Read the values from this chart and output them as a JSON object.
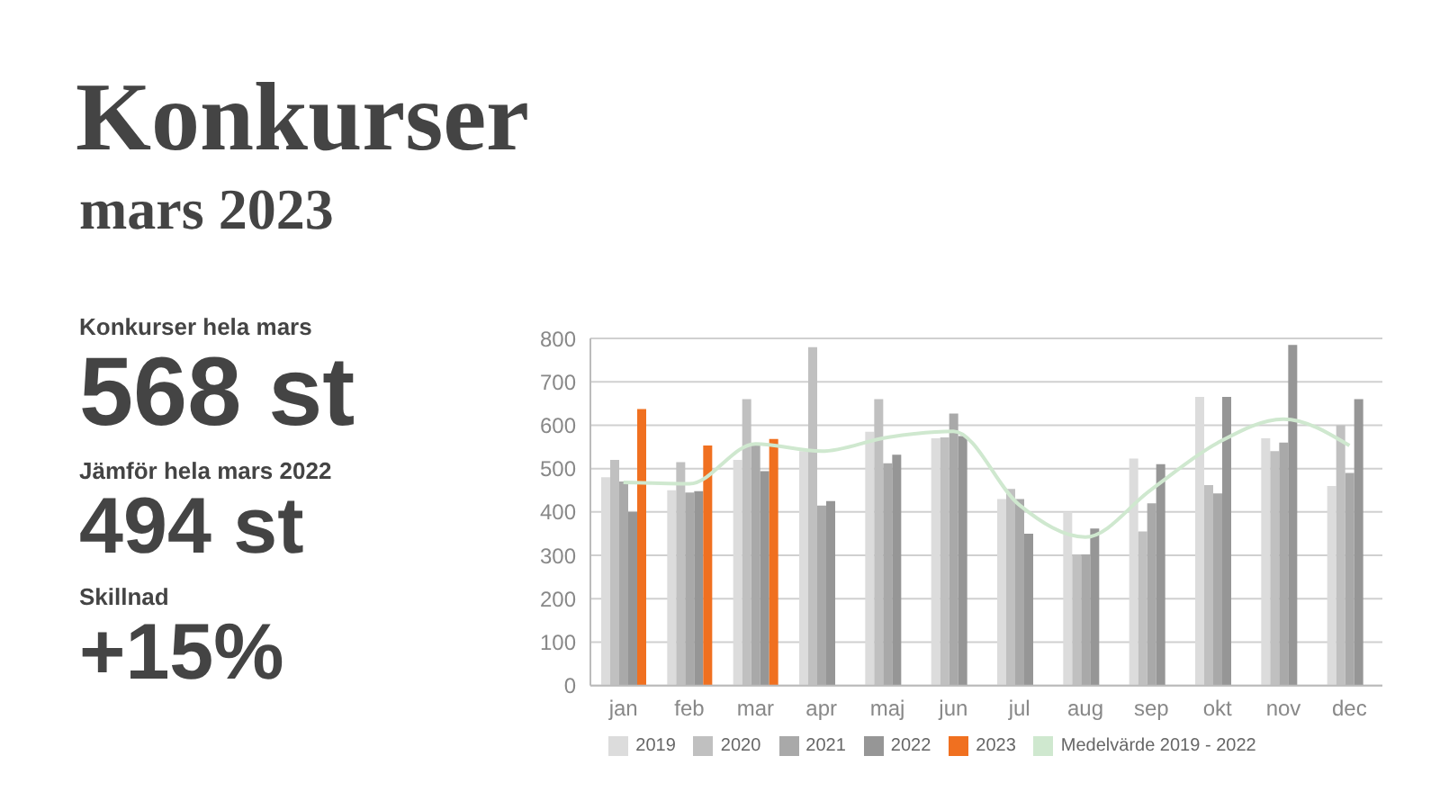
{
  "chart_data": {
    "type": "bar",
    "title": "Konkurser",
    "subtitle": "mars 2023",
    "annotations": [
      "Konkurser hela mars",
      "568 st",
      "Jämför hela mars 2022",
      "494 st",
      "Skillnad",
      "+15%"
    ],
    "categories": [
      "jan",
      "feb",
      "mar",
      "apr",
      "maj",
      "jun",
      "jul",
      "aug",
      "sep",
      "okt",
      "nov",
      "dec"
    ],
    "series": [
      {
        "name": "Medelvärde 2019 - 2022",
        "type": "line",
        "color": "#cfe8cf",
        "values": [
          468,
          465,
          557,
          540,
          572,
          586,
          416,
          342,
          452,
          559,
          614,
          553
        ]
      },
      {
        "name": "2019",
        "color": "#dcdcdc",
        "values": [
          480,
          450,
          520,
          540,
          585,
          570,
          430,
          400,
          523,
          665,
          570,
          460
        ]
      },
      {
        "name": "2020",
        "color": "#c0c0c0",
        "values": [
          520,
          515,
          660,
          780,
          660,
          572,
          453,
          302,
          355,
          462,
          540,
          600
        ]
      },
      {
        "name": "2021",
        "color": "#a9a9a9",
        "values": [
          470,
          445,
          555,
          415,
          512,
          627,
          430,
          302,
          420,
          443,
          560,
          490
        ]
      },
      {
        "name": "2022",
        "color": "#969696",
        "values": [
          400,
          448,
          494,
          425,
          532,
          575,
          350,
          362,
          510,
          665,
          785,
          660
        ]
      },
      {
        "name": "2023",
        "color": "#f07020",
        "values": [
          637,
          553,
          568,
          null,
          null,
          null,
          null,
          null,
          null,
          null,
          null,
          null
        ]
      }
    ],
    "ylim": [
      0,
      800
    ],
    "yticks": [
      0,
      100,
      200,
      300,
      400,
      500,
      600,
      700,
      800
    ],
    "grid": "y",
    "legend": "bottom",
    "marker": "none"
  }
}
